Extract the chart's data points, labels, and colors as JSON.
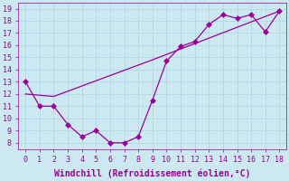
{
  "line1_x": [
    0,
    1,
    2,
    3,
    4,
    5,
    6,
    7,
    8,
    9,
    10,
    11,
    12,
    13,
    14,
    15,
    16,
    17,
    18
  ],
  "line1_y": [
    13,
    11,
    11,
    9.5,
    8.5,
    9,
    8,
    8,
    8.5,
    11.5,
    14.7,
    15.9,
    16.3,
    17.7,
    18.5,
    18.2,
    18.5,
    17.1,
    18.8
  ],
  "line2_x": [
    0,
    2,
    9,
    18
  ],
  "line2_y": [
    12.0,
    11.8,
    14.8,
    18.8
  ],
  "line_color": "#990099",
  "marker": "D",
  "marker_size": 3,
  "xlabel": "Windchill (Refroidissement éolien,°C)",
  "xlabel_fontsize": 7,
  "xlim": [
    -0.5,
    18.5
  ],
  "ylim": [
    7.5,
    19.5
  ],
  "xticks": [
    0,
    1,
    2,
    3,
    4,
    5,
    6,
    7,
    8,
    9,
    10,
    11,
    12,
    13,
    14,
    15,
    16,
    17,
    18
  ],
  "yticks": [
    8,
    9,
    10,
    11,
    12,
    13,
    14,
    15,
    16,
    17,
    18,
    19
  ],
  "bg_color": "#cce8f0",
  "grid_color": "#b0d8e8",
  "tick_color": "#990099",
  "tick_fontsize": 6,
  "tick_label_color": "#990099"
}
